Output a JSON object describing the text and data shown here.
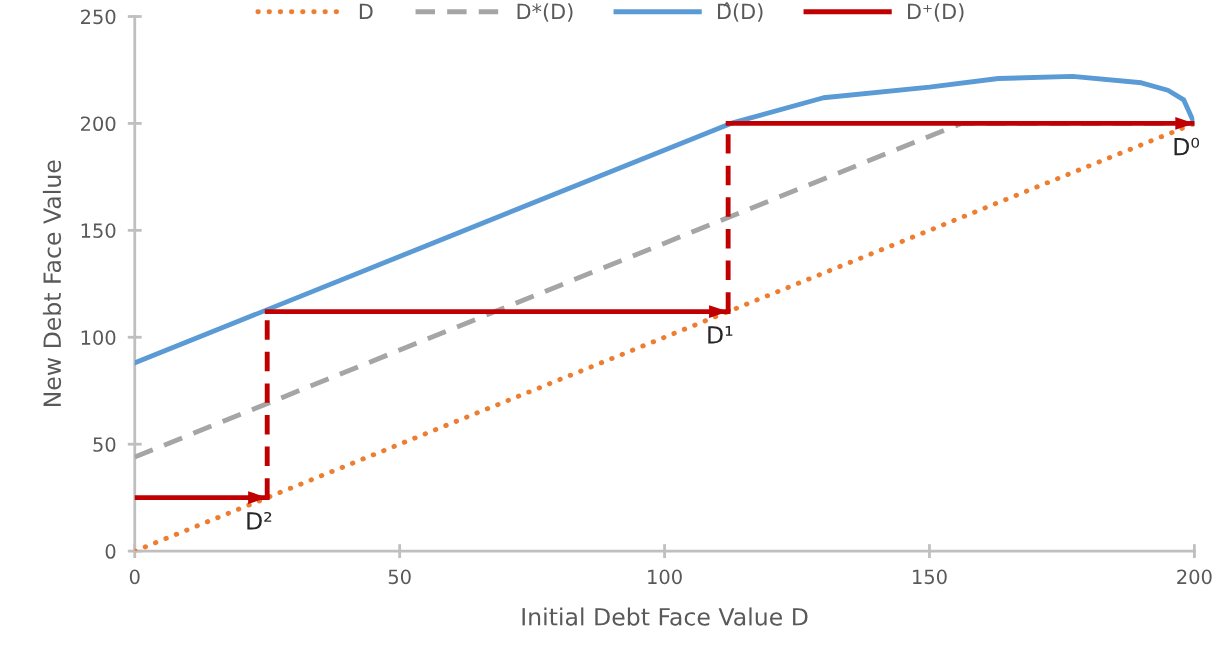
{
  "chart_data": {
    "type": "line",
    "xlabel": "Initial Debt Face Value D",
    "ylabel": "New Debt Face Value",
    "xlim": [
      0,
      200
    ],
    "ylim": [
      0,
      250
    ],
    "xticks": [
      0,
      50,
      100,
      150,
      200
    ],
    "yticks": [
      0,
      50,
      100,
      150,
      200,
      250
    ],
    "grid": false,
    "legend": "top",
    "series": [
      {
        "name": "D",
        "color": "#ed7d31",
        "line_style": "dotted",
        "x": [
          0,
          200
        ],
        "values": [
          0,
          200
        ]
      },
      {
        "name": "D*(D)",
        "color": "#a5a5a5",
        "line_style": "dashed",
        "x": [
          0,
          156,
          200
        ],
        "values": [
          44,
          200,
          200
        ]
      },
      {
        "name": "D̂(D)",
        "color": "#5b9bd5",
        "line_style": "solid",
        "x": [
          0,
          112.5,
          130,
          150,
          163,
          177,
          190,
          195,
          198,
          200
        ],
        "values": [
          88,
          200,
          212,
          217,
          221,
          222,
          219,
          215.5,
          211,
          200
        ]
      },
      {
        "name": "D⁺(D)",
        "color": "#c00000",
        "line_style": "solid",
        "x": [
          0,
          25
        ],
        "values": [
          25,
          25
        ]
      },
      {
        "color": "#c00000",
        "line_style": "solid",
        "x": [
          25,
          112
        ],
        "values": [
          112,
          112
        ]
      },
      {
        "color": "#c00000",
        "line_style": "solid",
        "x": [
          112,
          200
        ],
        "values": [
          200,
          200
        ]
      },
      {
        "color": "#c00000",
        "line_style": "dashed",
        "x": [
          25,
          25
        ],
        "values": [
          25,
          112
        ]
      },
      {
        "color": "#c00000",
        "line_style": "dashed",
        "x": [
          112,
          112
        ],
        "values": [
          112,
          200
        ]
      }
    ],
    "annotations": [
      {
        "text": "D⁰",
        "x": 200,
        "y": 200
      },
      {
        "text": "D¹",
        "x": 112,
        "y": 112
      },
      {
        "text": "D²",
        "x": 25,
        "y": 25
      }
    ]
  }
}
